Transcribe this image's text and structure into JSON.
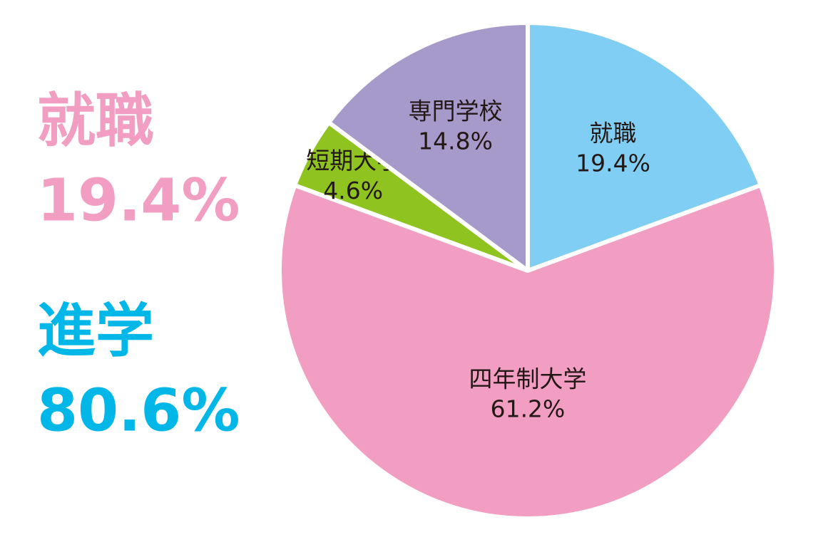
{
  "chart_data": {
    "type": "pie",
    "categories": [
      "就職",
      "四年制大学",
      "短期大学",
      "専門学校"
    ],
    "values": [
      19.4,
      61.2,
      4.6,
      14.8
    ],
    "value_labels": [
      "19.4%",
      "61.2%",
      "4.6%",
      "14.8%"
    ],
    "colors": [
      "#80cef3",
      "#f19ec2",
      "#8fc31f",
      "#a59aca"
    ],
    "summary": [
      {
        "name": "就職",
        "value": 19.4,
        "value_label": "19.4%",
        "color": "#f19ec2"
      },
      {
        "name": "進学",
        "value": 80.6,
        "value_label": "80.6%",
        "color": "#00b7e8"
      }
    ]
  }
}
